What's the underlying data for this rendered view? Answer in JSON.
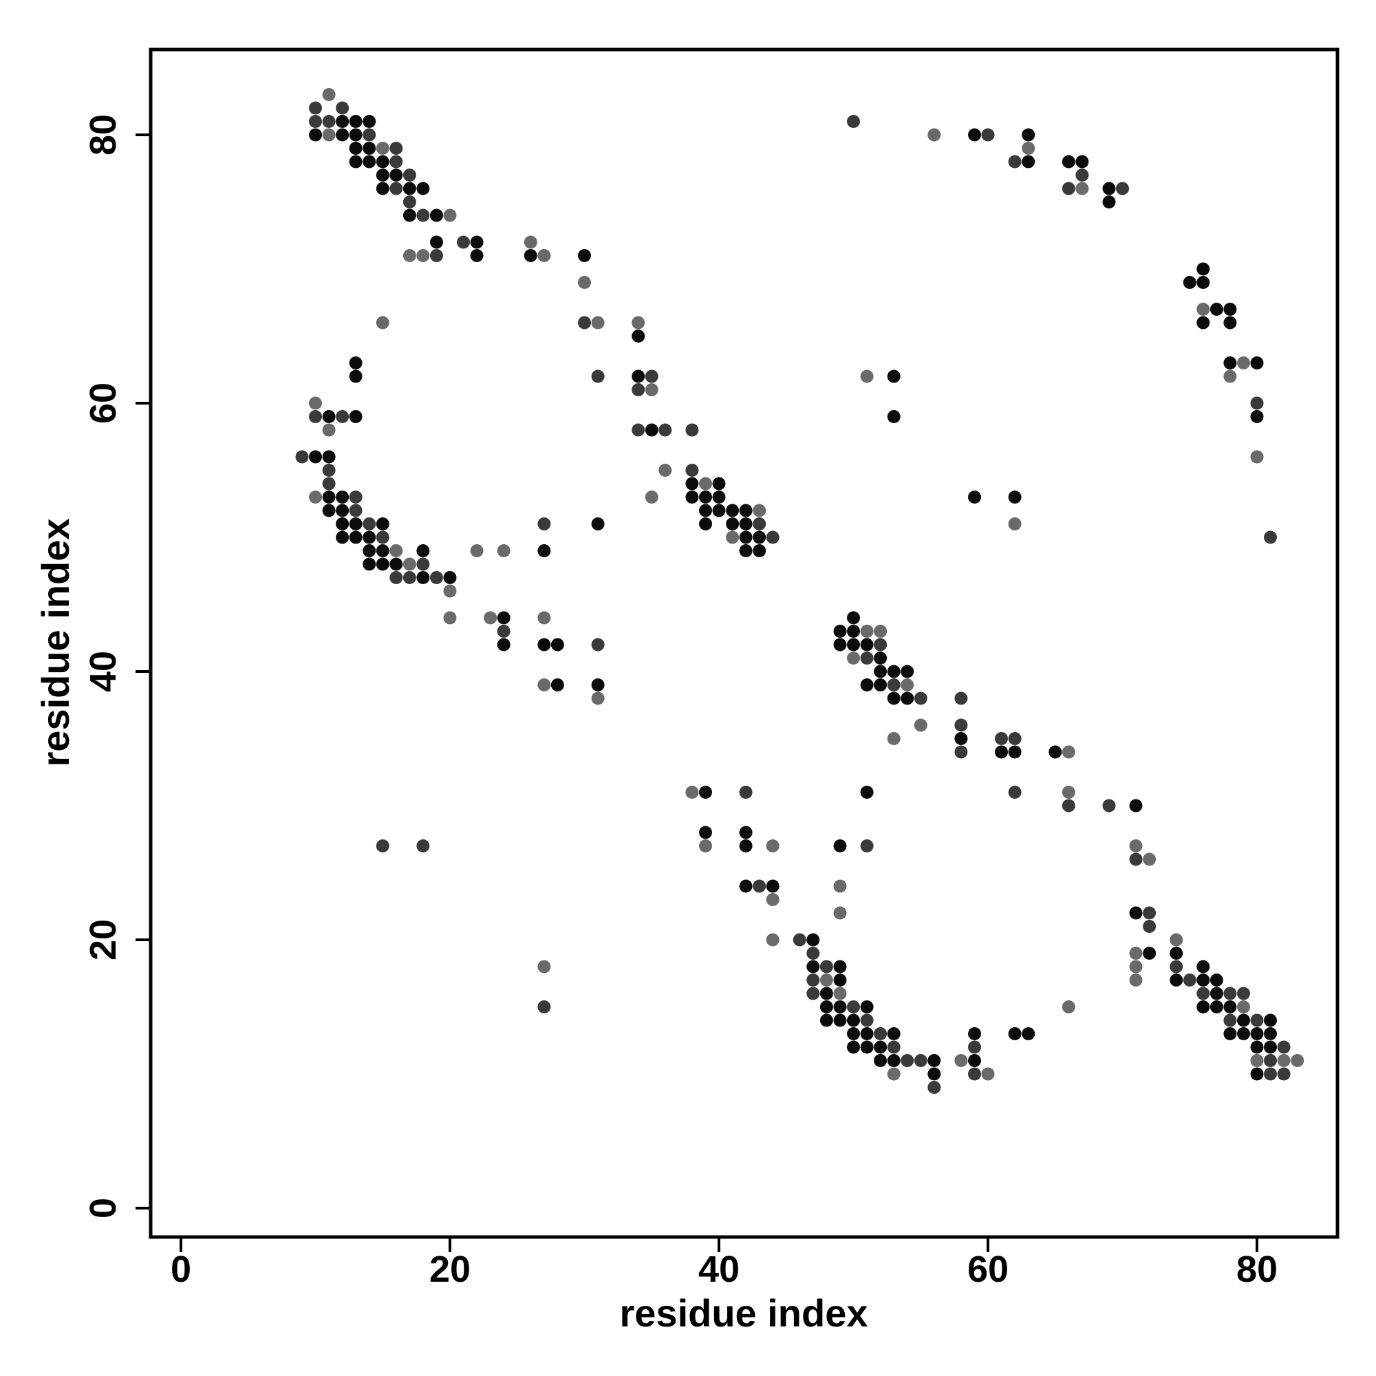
{
  "chart_data": {
    "type": "scatter",
    "title": "",
    "xlabel": "residue index",
    "ylabel": "residue index",
    "xlim": [
      -2.3,
      86
    ],
    "ylim": [
      -2.3,
      86
    ],
    "x_ticks": [
      0,
      20,
      40,
      60,
      80
    ],
    "y_ticks": [
      0,
      20,
      40,
      60,
      80
    ],
    "grid": false,
    "legend": "none",
    "colors": {
      "dark": "#0b0b0b",
      "mid": "#3a3a3a",
      "light": "#6a6a6a"
    },
    "points": [
      [
        10,
        82,
        "m"
      ],
      [
        11,
        83,
        "l"
      ],
      [
        12,
        82,
        "m"
      ],
      [
        10,
        81,
        "m"
      ],
      [
        11,
        81,
        "m"
      ],
      [
        12,
        81,
        "d"
      ],
      [
        13,
        81,
        "d"
      ],
      [
        14,
        81,
        "d"
      ],
      [
        10,
        80,
        "d"
      ],
      [
        11,
        80,
        "l"
      ],
      [
        12,
        80,
        "d"
      ],
      [
        13,
        80,
        "d"
      ],
      [
        14,
        80,
        "m"
      ],
      [
        13,
        79,
        "d"
      ],
      [
        14,
        79,
        "d"
      ],
      [
        15,
        79,
        "l"
      ],
      [
        16,
        79,
        "m"
      ],
      [
        13,
        78,
        "d"
      ],
      [
        14,
        78,
        "d"
      ],
      [
        15,
        78,
        "d"
      ],
      [
        16,
        78,
        "m"
      ],
      [
        15,
        77,
        "d"
      ],
      [
        16,
        77,
        "d"
      ],
      [
        17,
        77,
        "m"
      ],
      [
        15,
        76,
        "d"
      ],
      [
        16,
        76,
        "m"
      ],
      [
        17,
        76,
        "d"
      ],
      [
        18,
        76,
        "d"
      ],
      [
        17,
        75,
        "m"
      ],
      [
        17,
        74,
        "d"
      ],
      [
        18,
        74,
        "m"
      ],
      [
        19,
        74,
        "d"
      ],
      [
        20,
        74,
        "l"
      ],
      [
        19,
        72,
        "d"
      ],
      [
        21,
        72,
        "m"
      ],
      [
        22,
        72,
        "d"
      ],
      [
        26,
        72,
        "l"
      ],
      [
        17,
        71,
        "l"
      ],
      [
        18,
        71,
        "l"
      ],
      [
        19,
        71,
        "m"
      ],
      [
        22,
        71,
        "d"
      ],
      [
        26,
        71,
        "d"
      ],
      [
        27,
        71,
        "l"
      ],
      [
        30,
        71,
        "d"
      ],
      [
        30,
        69,
        "l"
      ],
      [
        15,
        66,
        "l"
      ],
      [
        30,
        66,
        "m"
      ],
      [
        31,
        66,
        "l"
      ],
      [
        34,
        66,
        "l"
      ],
      [
        34,
        65,
        "d"
      ],
      [
        13,
        63,
        "d"
      ],
      [
        13,
        62,
        "d"
      ],
      [
        31,
        62,
        "m"
      ],
      [
        34,
        62,
        "d"
      ],
      [
        35,
        62,
        "m"
      ],
      [
        34,
        61,
        "m"
      ],
      [
        35,
        61,
        "l"
      ],
      [
        10,
        60,
        "l"
      ],
      [
        10,
        59,
        "m"
      ],
      [
        11,
        59,
        "d"
      ],
      [
        12,
        59,
        "m"
      ],
      [
        13,
        59,
        "d"
      ],
      [
        11,
        58,
        "l"
      ],
      [
        34,
        58,
        "m"
      ],
      [
        35,
        58,
        "d"
      ],
      [
        36,
        58,
        "m"
      ],
      [
        38,
        58,
        "m"
      ],
      [
        9,
        56,
        "m"
      ],
      [
        10,
        56,
        "d"
      ],
      [
        11,
        56,
        "d"
      ],
      [
        11,
        55,
        "m"
      ],
      [
        36,
        55,
        "l"
      ],
      [
        38,
        55,
        "m"
      ],
      [
        11,
        54,
        "m"
      ],
      [
        38,
        54,
        "d"
      ],
      [
        39,
        54,
        "l"
      ],
      [
        40,
        54,
        "d"
      ],
      [
        10,
        53,
        "l"
      ],
      [
        11,
        53,
        "d"
      ],
      [
        12,
        53,
        "d"
      ],
      [
        13,
        53,
        "m"
      ],
      [
        35,
        53,
        "l"
      ],
      [
        38,
        53,
        "d"
      ],
      [
        39,
        53,
        "d"
      ],
      [
        40,
        53,
        "d"
      ],
      [
        11,
        52,
        "d"
      ],
      [
        12,
        52,
        "d"
      ],
      [
        13,
        52,
        "m"
      ],
      [
        39,
        52,
        "d"
      ],
      [
        40,
        52,
        "d"
      ],
      [
        41,
        52,
        "d"
      ],
      [
        42,
        52,
        "d"
      ],
      [
        43,
        52,
        "l"
      ],
      [
        12,
        51,
        "d"
      ],
      [
        13,
        51,
        "d"
      ],
      [
        14,
        51,
        "m"
      ],
      [
        15,
        51,
        "d"
      ],
      [
        27,
        51,
        "m"
      ],
      [
        31,
        51,
        "d"
      ],
      [
        39,
        51,
        "d"
      ],
      [
        41,
        51,
        "d"
      ],
      [
        42,
        51,
        "d"
      ],
      [
        43,
        51,
        "m"
      ],
      [
        12,
        50,
        "d"
      ],
      [
        13,
        50,
        "d"
      ],
      [
        14,
        50,
        "d"
      ],
      [
        15,
        50,
        "m"
      ],
      [
        41,
        50,
        "l"
      ],
      [
        42,
        50,
        "d"
      ],
      [
        43,
        50,
        "d"
      ],
      [
        44,
        50,
        "m"
      ],
      [
        14,
        49,
        "d"
      ],
      [
        15,
        49,
        "d"
      ],
      [
        16,
        49,
        "l"
      ],
      [
        18,
        49,
        "d"
      ],
      [
        22,
        49,
        "l"
      ],
      [
        24,
        49,
        "l"
      ],
      [
        27,
        49,
        "d"
      ],
      [
        42,
        49,
        "d"
      ],
      [
        43,
        49,
        "d"
      ],
      [
        14,
        48,
        "d"
      ],
      [
        15,
        48,
        "d"
      ],
      [
        16,
        48,
        "d"
      ],
      [
        17,
        48,
        "l"
      ],
      [
        18,
        48,
        "m"
      ],
      [
        16,
        47,
        "m"
      ],
      [
        17,
        47,
        "m"
      ],
      [
        18,
        47,
        "d"
      ],
      [
        19,
        47,
        "m"
      ],
      [
        20,
        47,
        "d"
      ],
      [
        20,
        46,
        "l"
      ],
      [
        20,
        44,
        "l"
      ],
      [
        23,
        44,
        "l"
      ],
      [
        24,
        44,
        "d"
      ],
      [
        27,
        44,
        "l"
      ],
      [
        50,
        44,
        "d"
      ],
      [
        24,
        43,
        "m"
      ],
      [
        49,
        43,
        "d"
      ],
      [
        50,
        43,
        "d"
      ],
      [
        51,
        43,
        "l"
      ],
      [
        52,
        43,
        "l"
      ],
      [
        24,
        42,
        "d"
      ],
      [
        27,
        42,
        "d"
      ],
      [
        28,
        42,
        "d"
      ],
      [
        31,
        42,
        "m"
      ],
      [
        49,
        42,
        "d"
      ],
      [
        50,
        42,
        "d"
      ],
      [
        51,
        42,
        "d"
      ],
      [
        52,
        42,
        "m"
      ],
      [
        50,
        41,
        "l"
      ],
      [
        51,
        41,
        "m"
      ],
      [
        52,
        41,
        "d"
      ],
      [
        52,
        40,
        "d"
      ],
      [
        53,
        40,
        "d"
      ],
      [
        54,
        40,
        "d"
      ],
      [
        27,
        39,
        "l"
      ],
      [
        28,
        39,
        "d"
      ],
      [
        31,
        39,
        "d"
      ],
      [
        51,
        39,
        "d"
      ],
      [
        52,
        39,
        "d"
      ],
      [
        53,
        39,
        "m"
      ],
      [
        54,
        39,
        "l"
      ],
      [
        31,
        38,
        "l"
      ],
      [
        53,
        38,
        "d"
      ],
      [
        54,
        38,
        "d"
      ],
      [
        55,
        38,
        "m"
      ],
      [
        58,
        38,
        "m"
      ],
      [
        55,
        36,
        "l"
      ],
      [
        58,
        36,
        "m"
      ],
      [
        53,
        35,
        "l"
      ],
      [
        58,
        35,
        "d"
      ],
      [
        61,
        35,
        "m"
      ],
      [
        62,
        35,
        "m"
      ],
      [
        58,
        34,
        "m"
      ],
      [
        61,
        34,
        "d"
      ],
      [
        62,
        34,
        "d"
      ],
      [
        65,
        34,
        "d"
      ],
      [
        66,
        34,
        "l"
      ],
      [
        38,
        31,
        "l"
      ],
      [
        39,
        31,
        "d"
      ],
      [
        42,
        31,
        "m"
      ],
      [
        51,
        31,
        "d"
      ],
      [
        62,
        31,
        "m"
      ],
      [
        66,
        31,
        "l"
      ],
      [
        66,
        30,
        "m"
      ],
      [
        69,
        30,
        "m"
      ],
      [
        71,
        30,
        "d"
      ],
      [
        39,
        28,
        "d"
      ],
      [
        42,
        28,
        "d"
      ],
      [
        15,
        27,
        "m"
      ],
      [
        18,
        27,
        "m"
      ],
      [
        39,
        27,
        "l"
      ],
      [
        42,
        27,
        "d"
      ],
      [
        44,
        27,
        "l"
      ],
      [
        49,
        27,
        "d"
      ],
      [
        51,
        27,
        "m"
      ],
      [
        71,
        27,
        "l"
      ],
      [
        71,
        26,
        "m"
      ],
      [
        72,
        26,
        "l"
      ],
      [
        42,
        24,
        "d"
      ],
      [
        43,
        24,
        "m"
      ],
      [
        44,
        24,
        "d"
      ],
      [
        49,
        24,
        "l"
      ],
      [
        44,
        23,
        "l"
      ],
      [
        49,
        22,
        "l"
      ],
      [
        71,
        22,
        "d"
      ],
      [
        72,
        22,
        "m"
      ],
      [
        72,
        21,
        "m"
      ],
      [
        44,
        20,
        "l"
      ],
      [
        46,
        20,
        "m"
      ],
      [
        47,
        20,
        "d"
      ],
      [
        74,
        20,
        "l"
      ],
      [
        47,
        19,
        "m"
      ],
      [
        71,
        19,
        "l"
      ],
      [
        72,
        19,
        "d"
      ],
      [
        74,
        19,
        "d"
      ],
      [
        27,
        18,
        "l"
      ],
      [
        47,
        18,
        "d"
      ],
      [
        48,
        18,
        "m"
      ],
      [
        49,
        18,
        "d"
      ],
      [
        71,
        18,
        "l"
      ],
      [
        74,
        18,
        "m"
      ],
      [
        76,
        18,
        "d"
      ],
      [
        47,
        17,
        "m"
      ],
      [
        48,
        17,
        "l"
      ],
      [
        49,
        17,
        "d"
      ],
      [
        71,
        17,
        "l"
      ],
      [
        74,
        17,
        "d"
      ],
      [
        75,
        17,
        "m"
      ],
      [
        76,
        17,
        "d"
      ],
      [
        77,
        17,
        "d"
      ],
      [
        47,
        16,
        "m"
      ],
      [
        48,
        16,
        "d"
      ],
      [
        49,
        16,
        "l"
      ],
      [
        76,
        16,
        "m"
      ],
      [
        77,
        16,
        "d"
      ],
      [
        78,
        16,
        "m"
      ],
      [
        79,
        16,
        "m"
      ],
      [
        27,
        15,
        "m"
      ],
      [
        48,
        15,
        "d"
      ],
      [
        49,
        15,
        "d"
      ],
      [
        50,
        15,
        "m"
      ],
      [
        51,
        15,
        "d"
      ],
      [
        66,
        15,
        "l"
      ],
      [
        76,
        15,
        "d"
      ],
      [
        77,
        15,
        "d"
      ],
      [
        78,
        15,
        "d"
      ],
      [
        79,
        15,
        "l"
      ],
      [
        48,
        14,
        "d"
      ],
      [
        49,
        14,
        "d"
      ],
      [
        50,
        14,
        "d"
      ],
      [
        51,
        14,
        "m"
      ],
      [
        78,
        14,
        "m"
      ],
      [
        79,
        14,
        "d"
      ],
      [
        80,
        14,
        "m"
      ],
      [
        81,
        14,
        "d"
      ],
      [
        50,
        13,
        "d"
      ],
      [
        51,
        13,
        "d"
      ],
      [
        52,
        13,
        "m"
      ],
      [
        53,
        13,
        "d"
      ],
      [
        59,
        13,
        "d"
      ],
      [
        62,
        13,
        "d"
      ],
      [
        63,
        13,
        "d"
      ],
      [
        78,
        13,
        "d"
      ],
      [
        79,
        13,
        "d"
      ],
      [
        80,
        13,
        "d"
      ],
      [
        81,
        13,
        "d"
      ],
      [
        50,
        12,
        "d"
      ],
      [
        51,
        12,
        "d"
      ],
      [
        52,
        12,
        "d"
      ],
      [
        53,
        12,
        "m"
      ],
      [
        59,
        12,
        "m"
      ],
      [
        80,
        12,
        "d"
      ],
      [
        81,
        12,
        "d"
      ],
      [
        82,
        12,
        "m"
      ],
      [
        52,
        11,
        "d"
      ],
      [
        53,
        11,
        "d"
      ],
      [
        54,
        11,
        "m"
      ],
      [
        55,
        11,
        "m"
      ],
      [
        56,
        11,
        "d"
      ],
      [
        58,
        11,
        "l"
      ],
      [
        59,
        11,
        "d"
      ],
      [
        80,
        11,
        "l"
      ],
      [
        81,
        11,
        "m"
      ],
      [
        82,
        11,
        "l"
      ],
      [
        83,
        11,
        "l"
      ],
      [
        53,
        10,
        "l"
      ],
      [
        56,
        10,
        "d"
      ],
      [
        59,
        10,
        "m"
      ],
      [
        60,
        10,
        "l"
      ],
      [
        80,
        10,
        "d"
      ],
      [
        81,
        10,
        "m"
      ],
      [
        82,
        10,
        "m"
      ],
      [
        56,
        9,
        "m"
      ],
      [
        50,
        81,
        "m"
      ],
      [
        56,
        80,
        "l"
      ],
      [
        59,
        80,
        "d"
      ],
      [
        60,
        80,
        "m"
      ],
      [
        63,
        80,
        "d"
      ],
      [
        63,
        79,
        "l"
      ],
      [
        62,
        78,
        "m"
      ],
      [
        63,
        78,
        "d"
      ],
      [
        66,
        78,
        "d"
      ],
      [
        67,
        78,
        "d"
      ],
      [
        67,
        77,
        "m"
      ],
      [
        66,
        76,
        "m"
      ],
      [
        67,
        76,
        "l"
      ],
      [
        69,
        76,
        "d"
      ],
      [
        70,
        76,
        "m"
      ],
      [
        69,
        75,
        "d"
      ],
      [
        76,
        70,
        "d"
      ],
      [
        75,
        69,
        "d"
      ],
      [
        76,
        69,
        "d"
      ],
      [
        76,
        67,
        "l"
      ],
      [
        77,
        67,
        "d"
      ],
      [
        78,
        67,
        "d"
      ],
      [
        76,
        66,
        "d"
      ],
      [
        78,
        66,
        "d"
      ],
      [
        78,
        63,
        "d"
      ],
      [
        79,
        63,
        "l"
      ],
      [
        80,
        63,
        "d"
      ],
      [
        78,
        62,
        "l"
      ],
      [
        51,
        62,
        "l"
      ],
      [
        53,
        62,
        "d"
      ],
      [
        80,
        60,
        "m"
      ],
      [
        53,
        59,
        "d"
      ],
      [
        80,
        59,
        "d"
      ],
      [
        80,
        56,
        "l"
      ],
      [
        59,
        53,
        "d"
      ],
      [
        62,
        53,
        "d"
      ],
      [
        62,
        51,
        "l"
      ],
      [
        81,
        50,
        "m"
      ]
    ]
  }
}
